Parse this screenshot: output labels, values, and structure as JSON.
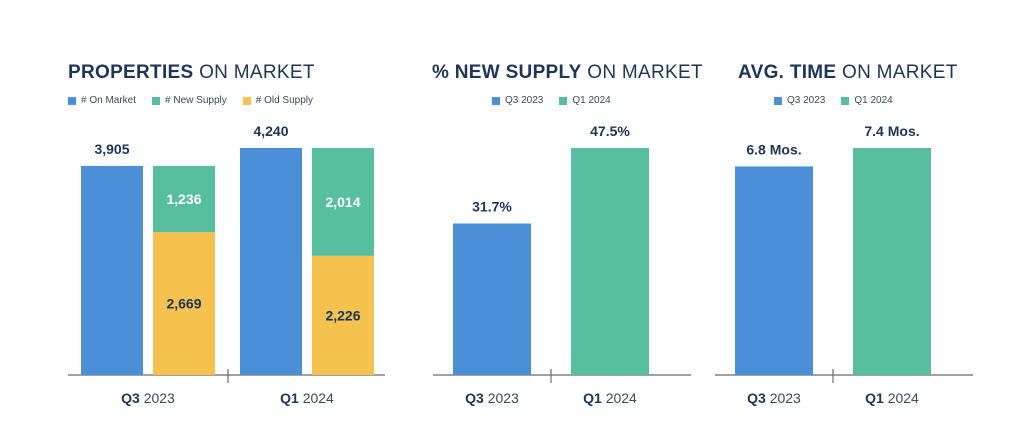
{
  "colors": {
    "on_market": "#4a8fd8",
    "new_supply": "#58bf9e",
    "old_supply": "#f5c24f",
    "q3": "#4a8fd8",
    "q1": "#58bf9e",
    "text": "#1d3557",
    "axis": "#6b6b6b"
  },
  "chart_data": [
    {
      "type": "bar",
      "title_bold": "PROPERTIES",
      "title_rest": "ON MARKET",
      "legend": [
        "# On Market",
        "# New Supply",
        "# Old Supply"
      ],
      "groups": [
        {
          "label_bold": "Q3",
          "label_rest": "2023",
          "on_market": 3905,
          "new_supply": 1236,
          "old_supply": 2669,
          "on_market_label": "3,905",
          "new_supply_label": "1,236",
          "old_supply_label": "2,669"
        },
        {
          "label_bold": "Q1",
          "label_rest": "2024",
          "on_market": 4240,
          "new_supply": 2014,
          "old_supply": 2226,
          "on_market_label": "4,240",
          "new_supply_label": "2,014",
          "old_supply_label": "2,226"
        }
      ],
      "ylim": [
        0,
        4240
      ]
    },
    {
      "type": "bar",
      "title_bold": "% NEW SUPPLY",
      "title_rest": "ON MARKET",
      "legend": [
        "Q3 2023",
        "Q1 2024"
      ],
      "categories": [
        {
          "label_bold": "Q3",
          "label_rest": "2023"
        },
        {
          "label_bold": "Q1",
          "label_rest": "2024"
        }
      ],
      "values": [
        31.7,
        47.5
      ],
      "value_labels": [
        "31.7%",
        "47.5%"
      ],
      "ylim": [
        0,
        47.5
      ]
    },
    {
      "type": "bar",
      "title_bold": "AVG. TIME",
      "title_rest": "ON MARKET",
      "legend": [
        "Q3 2023",
        "Q1 2024"
      ],
      "categories": [
        {
          "label_bold": "Q3",
          "label_rest": "2023"
        },
        {
          "label_bold": "Q1",
          "label_rest": "2024"
        }
      ],
      "values": [
        6.8,
        7.4
      ],
      "value_labels": [
        "6.8 Mos.",
        "7.4 Mos."
      ],
      "ylim": [
        0,
        7.4
      ]
    }
  ]
}
